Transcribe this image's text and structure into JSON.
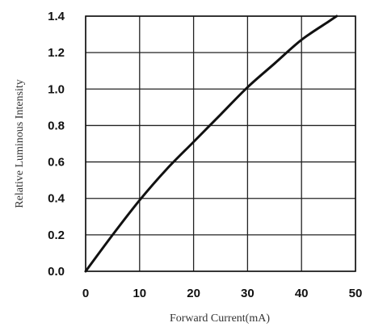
{
  "chart_data": {
    "type": "line",
    "title": "",
    "xlabel": "Forward Current(mA)",
    "ylabel": "Relative Luminous Intensity",
    "xlim": [
      0,
      50
    ],
    "ylim": [
      0,
      1.4
    ],
    "x_ticks": [
      "0",
      "10",
      "20",
      "30",
      "40",
      "50"
    ],
    "y_ticks": [
      "0.0",
      "0.2",
      "0.4",
      "0.6",
      "0.8",
      "1.0",
      "1.2",
      "1.4"
    ],
    "grid": true,
    "legend": "none",
    "series": [
      {
        "color": "#111111",
        "x": [
          0,
          5,
          10,
          15,
          20,
          25,
          30,
          35,
          40,
          45,
          46.5
        ],
        "y": [
          0,
          0.2,
          0.39,
          0.56,
          0.71,
          0.86,
          1.01,
          1.14,
          1.27,
          1.37,
          1.4
        ]
      }
    ]
  }
}
